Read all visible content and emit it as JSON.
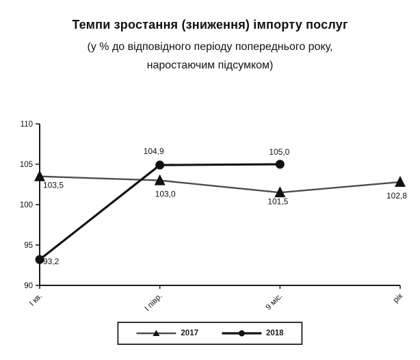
{
  "header": {
    "title": "Темпи зростання (зниження) імпорту послуг",
    "subtitle_line1": "(у % до відповідного періоду попереднього року,",
    "subtitle_line2": "наростаючим підсумком)"
  },
  "chart_data": {
    "type": "line",
    "title": "Темпи зростання (зниження) імпорту послуг",
    "subtitle": "(у % до відповідного періоду попереднього року, наростаючим підсумком)",
    "categories": [
      "І кв.",
      "І півр.",
      "9 міс.",
      "рік"
    ],
    "series": [
      {
        "name": "2017",
        "marker": "triangle",
        "color": "#4d4d4d",
        "line_width": 2.4,
        "values": [
          103.5,
          103.0,
          101.5,
          102.8
        ]
      },
      {
        "name": "2018",
        "marker": "circle",
        "color": "#121212",
        "line_width": 3.2,
        "values": [
          93.2,
          104.9,
          105.0,
          null
        ]
      }
    ],
    "ylim": [
      90,
      110
    ],
    "yticks": [
      90,
      95,
      100,
      105,
      110
    ],
    "decimal_separator": ",",
    "grid": false,
    "legend_position": "bottom",
    "axis_color": "#1a1a1a",
    "label_color": "#111111",
    "data_labels": true
  }
}
